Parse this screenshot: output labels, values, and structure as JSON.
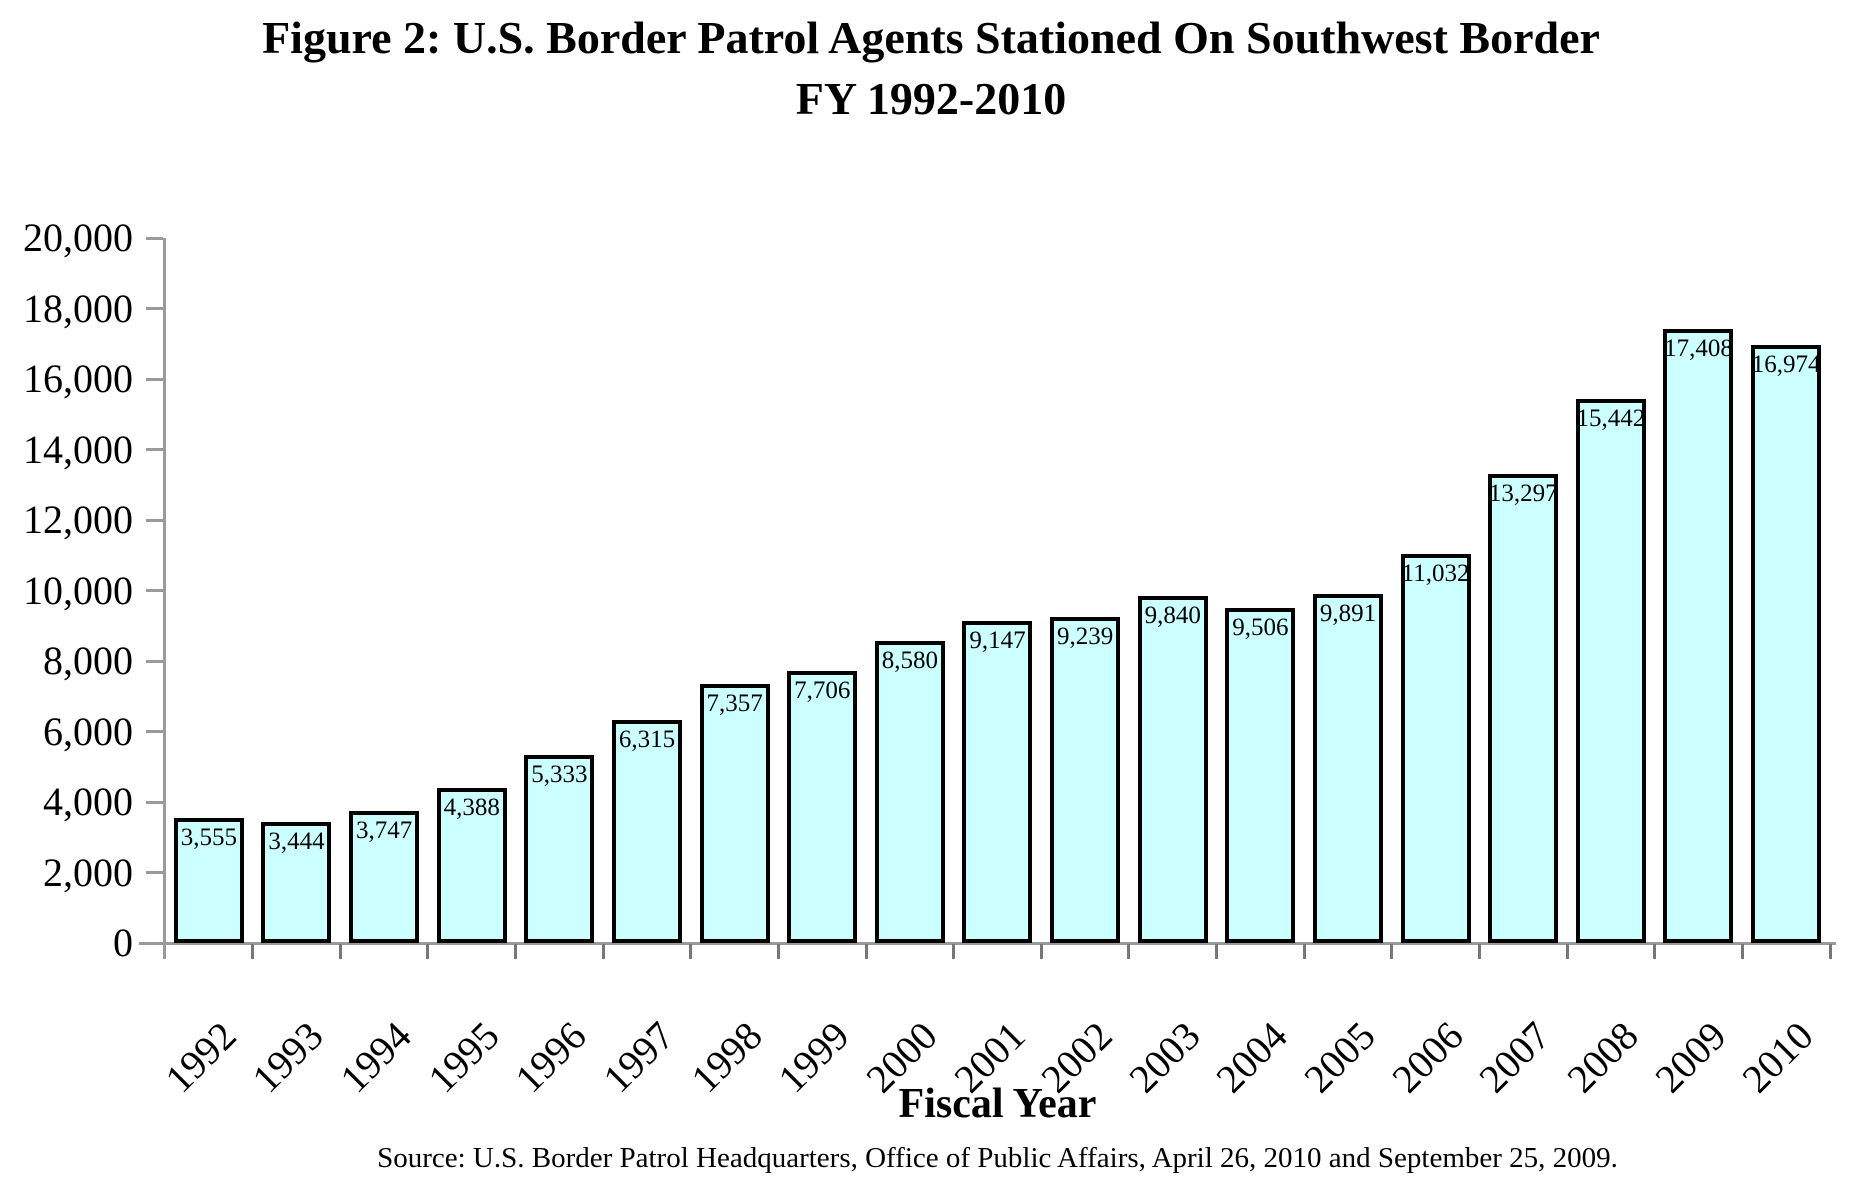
{
  "title": {
    "line1": "Figure 2: U.S. Border Patrol Agents Stationed On Southwest Border",
    "line2": "FY 1992-2010"
  },
  "source_note": "Source: U.S. Border Patrol Headquarters, Office of Public Affairs, April 26, 2010 and September 25, 2009.",
  "chart_data": {
    "type": "bar",
    "title": "Figure 2: U.S. Border Patrol Agents Stationed On Southwest Border FY 1992-2010",
    "xlabel": "Fiscal Year",
    "ylabel": "",
    "categories": [
      "1992",
      "1993",
      "1994",
      "1995",
      "1996",
      "1997",
      "1998",
      "1999",
      "2000",
      "2001",
      "2002",
      "2003",
      "2004",
      "2005",
      "2006",
      "2007",
      "2008",
      "2009",
      "2010"
    ],
    "values": [
      3555,
      3444,
      3747,
      4388,
      5333,
      6315,
      7357,
      7706,
      8580,
      9147,
      9239,
      9840,
      9506,
      9891,
      11032,
      13297,
      15442,
      17408,
      16974
    ],
    "value_labels": [
      "3,555",
      "3,444",
      "3,747",
      "4,388",
      "5,333",
      "6,315",
      "7,357",
      "7,706",
      "8,580",
      "9,147",
      "9,239",
      "9,840",
      "9,506",
      "9,891",
      "11,032",
      "13,297",
      "15,442",
      "17,408",
      "16,974"
    ],
    "ylim": [
      0,
      20000
    ],
    "ytick_interval": 2000,
    "ytick_labels": [
      "0",
      "2,000",
      "4,000",
      "6,000",
      "8,000",
      "10,000",
      "12,000",
      "14,000",
      "16,000",
      "18,000",
      "20,000"
    ],
    "grid": false,
    "legend": false,
    "bar_fill_color": "#CCFFFF",
    "bar_border_color": "#000000",
    "axis_color": "#9A9A9A",
    "value_labels_position": "inside-top"
  }
}
